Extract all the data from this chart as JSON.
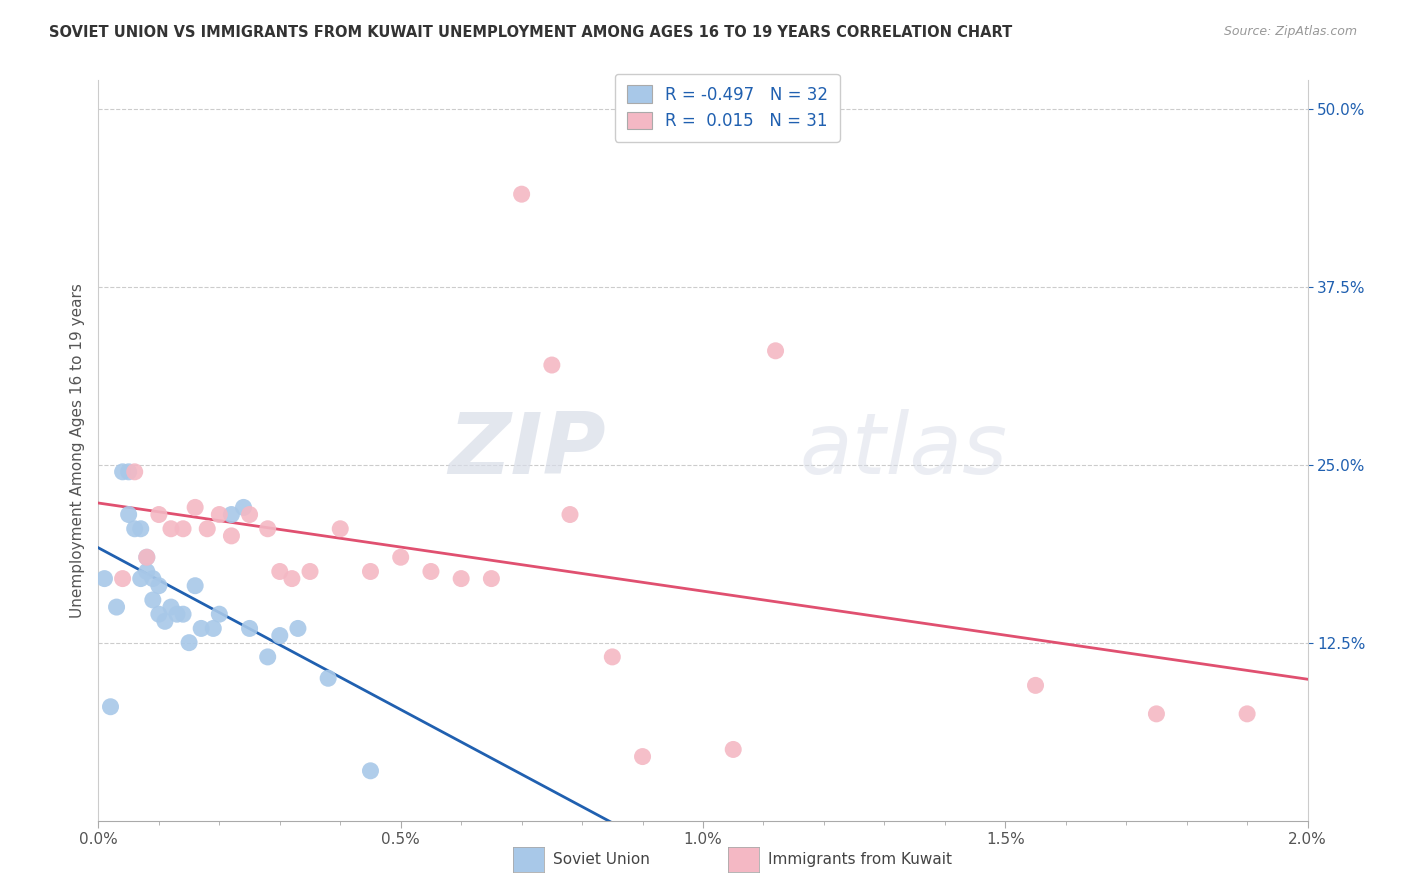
{
  "title": "SOVIET UNION VS IMMIGRANTS FROM KUWAIT UNEMPLOYMENT AMONG AGES 16 TO 19 YEARS CORRELATION CHART",
  "source": "Source: ZipAtlas.com",
  "ylabel": "Unemployment Among Ages 16 to 19 years",
  "x_tick_labels": [
    "0.0%",
    "",
    "",
    "",
    "",
    "0.5%",
    "",
    "",
    "",
    "",
    "1.0%",
    "",
    "",
    "",
    "",
    "1.5%",
    "",
    "",
    "",
    "",
    "2.0%"
  ],
  "x_tick_vals": [
    0.0,
    0.1,
    0.2,
    0.3,
    0.4,
    0.5,
    0.6,
    0.7,
    0.8,
    0.9,
    1.0,
    1.1,
    1.2,
    1.3,
    1.4,
    1.5,
    1.6,
    1.7,
    1.8,
    1.9,
    2.0
  ],
  "y_tick_labels": [
    "12.5%",
    "25.0%",
    "37.5%",
    "50.0%"
  ],
  "y_tick_vals": [
    12.5,
    25.0,
    37.5,
    50.0
  ],
  "xlim": [
    0.0,
    2.0
  ],
  "ylim": [
    0.0,
    52.0
  ],
  "blue_R": -0.497,
  "blue_N": 32,
  "pink_R": 0.015,
  "pink_N": 31,
  "blue_color": "#a8c8e8",
  "pink_color": "#f4b8c4",
  "blue_line_color": "#2060b0",
  "pink_line_color": "#e05070",
  "blue_label": "Soviet Union",
  "pink_label": "Immigrants from Kuwait",
  "watermark_zip": "ZIP",
  "watermark_atlas": "atlas",
  "blue_x": [
    0.01,
    0.02,
    0.03,
    0.04,
    0.05,
    0.05,
    0.06,
    0.07,
    0.07,
    0.08,
    0.08,
    0.09,
    0.09,
    0.1,
    0.1,
    0.11,
    0.12,
    0.13,
    0.14,
    0.15,
    0.16,
    0.17,
    0.19,
    0.2,
    0.22,
    0.24,
    0.25,
    0.28,
    0.3,
    0.33,
    0.38,
    0.45
  ],
  "blue_y": [
    17.0,
    8.0,
    15.0,
    24.5,
    24.5,
    21.5,
    20.5,
    20.5,
    17.0,
    17.5,
    18.5,
    15.5,
    17.0,
    16.5,
    14.5,
    14.0,
    15.0,
    14.5,
    14.5,
    12.5,
    16.5,
    13.5,
    13.5,
    14.5,
    21.5,
    22.0,
    13.5,
    11.5,
    13.0,
    13.5,
    10.0,
    3.5
  ],
  "pink_x": [
    0.04,
    0.06,
    0.08,
    0.1,
    0.12,
    0.14,
    0.16,
    0.18,
    0.2,
    0.22,
    0.25,
    0.28,
    0.3,
    0.32,
    0.35,
    0.4,
    0.45,
    0.5,
    0.55,
    0.6,
    0.65,
    0.7,
    0.75,
    0.78,
    0.85,
    0.9,
    1.05,
    1.12,
    1.55,
    1.75,
    1.9
  ],
  "pink_y": [
    17.0,
    24.5,
    18.5,
    21.5,
    20.5,
    20.5,
    22.0,
    20.5,
    21.5,
    20.0,
    21.5,
    20.5,
    17.5,
    17.0,
    17.5,
    20.5,
    17.5,
    18.5,
    17.5,
    17.0,
    17.0,
    44.0,
    32.0,
    21.5,
    11.5,
    4.5,
    5.0,
    33.0,
    9.5,
    7.5,
    7.5
  ]
}
